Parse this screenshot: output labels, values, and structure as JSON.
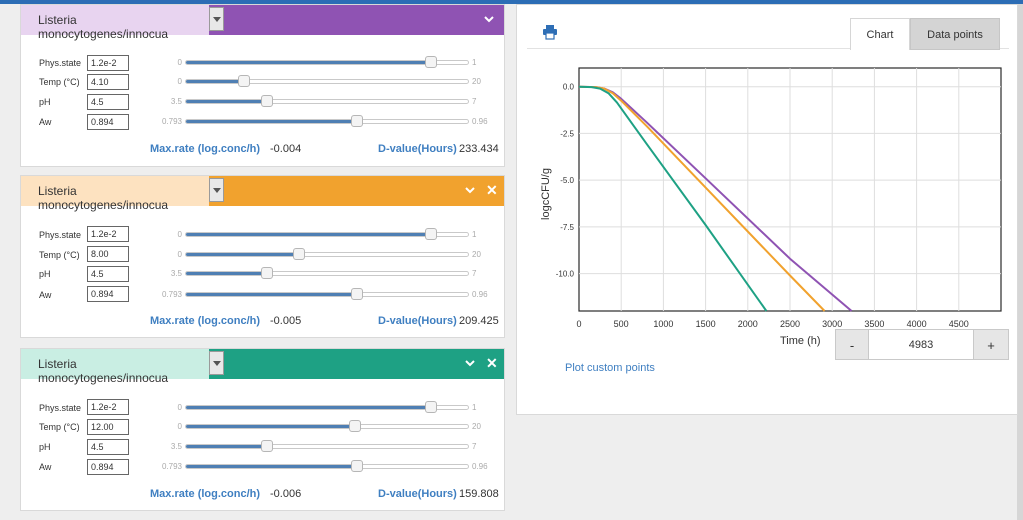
{
  "panels": [
    {
      "title": "Listeria monocytogenes/innocua",
      "color": "#8f53b3",
      "light": "#e8d4f0",
      "has_close": false,
      "params": [
        {
          "label": "Phys.state",
          "value": "1.2e-2",
          "min": "0",
          "max": "1",
          "level": 0.87
        },
        {
          "label": "Temp (°C)",
          "value": "4.10",
          "min": "0",
          "max": "20",
          "level": 0.205
        },
        {
          "label": "pH",
          "value": "4.5",
          "min": "3.5",
          "max": "7",
          "level": 0.286
        },
        {
          "label": "Aw",
          "value": "0.894",
          "min": "0.793",
          "max": "0.96",
          "level": 0.605
        }
      ],
      "rate_label": "Max.rate (log.conc/h)",
      "rate_value": "-0.004",
      "dval_label": "D-value(Hours)",
      "dval_value": "233.434"
    },
    {
      "title": "Listeria monocytogenes/innocua",
      "color": "#f1a22e",
      "light": "#fde2c0",
      "has_close": true,
      "params": [
        {
          "label": "Phys.state",
          "value": "1.2e-2",
          "min": "0",
          "max": "1",
          "level": 0.87
        },
        {
          "label": "Temp (°C)",
          "value": "8.00",
          "min": "0",
          "max": "20",
          "level": 0.4
        },
        {
          "label": "pH",
          "value": "4.5",
          "min": "3.5",
          "max": "7",
          "level": 0.286
        },
        {
          "label": "Aw",
          "value": "0.894",
          "min": "0.793",
          "max": "0.96",
          "level": 0.605
        }
      ],
      "rate_label": "Max.rate (log.conc/h)",
      "rate_value": "-0.005",
      "dval_label": "D-value(Hours)",
      "dval_value": "209.425"
    },
    {
      "title": "Listeria monocytogenes/innocua",
      "color": "#1ea184",
      "light": "#c9eee3",
      "has_close": true,
      "params": [
        {
          "label": "Phys.state",
          "value": "1.2e-2",
          "min": "0",
          "max": "1",
          "level": 0.87
        },
        {
          "label": "Temp (°C)",
          "value": "12.00",
          "min": "0",
          "max": "20",
          "level": 0.6
        },
        {
          "label": "pH",
          "value": "4.5",
          "min": "3.5",
          "max": "7",
          "level": 0.286
        },
        {
          "label": "Aw",
          "value": "0.894",
          "min": "0.793",
          "max": "0.96",
          "level": 0.605
        }
      ],
      "rate_label": "Max.rate (log.conc/h)",
      "rate_value": "-0.006",
      "dval_label": "D-value(Hours)",
      "dval_value": "159.808"
    }
  ],
  "chart_panel": {
    "print_icon": "printer-icon",
    "tabs": [
      "Chart",
      "Data points"
    ],
    "active_tab": "Chart",
    "time_value": "4983",
    "minus_label": "-",
    "plus_label": "+",
    "custom_points_link": "Plot custom points"
  },
  "chart_data": {
    "type": "line",
    "xlabel": "Time (h)",
    "ylabel": "logcCFU/g",
    "xlim": [
      0,
      5000
    ],
    "ylim": [
      -12,
      1
    ],
    "x_ticks": [
      0,
      500,
      1000,
      1500,
      2000,
      2500,
      3000,
      3500,
      4000,
      4500
    ],
    "y_ticks": [
      0.0,
      -2.5,
      -5.0,
      -7.5,
      -10.0
    ],
    "y_tick_labels": [
      "0.0",
      "-2.5",
      "-5.0",
      "-7.5",
      "-10.0"
    ],
    "grid": true,
    "series": [
      {
        "color": "#8f53b3",
        "points": [
          [
            0,
            0
          ],
          [
            200,
            -0.02
          ],
          [
            300,
            -0.1
          ],
          [
            400,
            -0.3
          ],
          [
            500,
            -0.65
          ],
          [
            800,
            -1.9
          ],
          [
            1500,
            -4.9
          ],
          [
            2500,
            -9.2
          ],
          [
            3230,
            -12
          ]
        ]
      },
      {
        "color": "#f1a22e",
        "points": [
          [
            0,
            0
          ],
          [
            200,
            -0.02
          ],
          [
            300,
            -0.1
          ],
          [
            400,
            -0.35
          ],
          [
            500,
            -0.75
          ],
          [
            800,
            -2.1
          ],
          [
            1500,
            -5.4
          ],
          [
            2500,
            -10.1
          ],
          [
            2910,
            -12
          ]
        ]
      },
      {
        "color": "#1ea184",
        "points": [
          [
            0,
            0
          ],
          [
            150,
            -0.02
          ],
          [
            250,
            -0.1
          ],
          [
            350,
            -0.35
          ],
          [
            450,
            -0.85
          ],
          [
            800,
            -3.05
          ],
          [
            1500,
            -7.4
          ],
          [
            2220,
            -12
          ]
        ]
      }
    ]
  }
}
